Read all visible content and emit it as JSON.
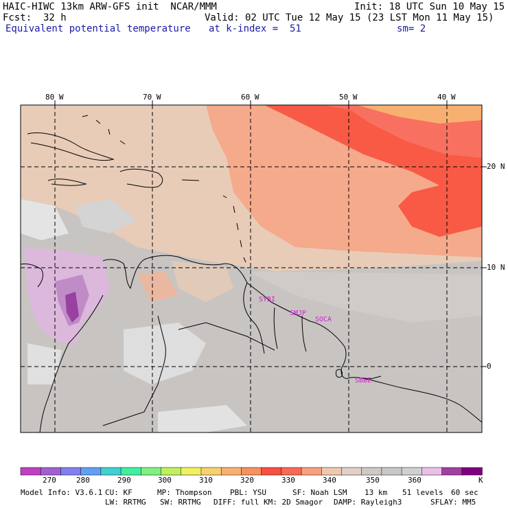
{
  "header": {
    "model": "HAIC-HIWC 13km ARW-GFS init  NCAR/MMM",
    "init": "Init: 18 UTC Sun 10 May 15",
    "fcst": "Fcst:  32 h",
    "valid": "Valid: 02 UTC Tue 12 May 15 (23 LST Mon 11 May 15)",
    "field": "Equivalent potential temperature",
    "level": "at k-index =  51",
    "smooth": "sm= 2"
  },
  "map": {
    "lon_labels": [
      "80 W",
      "70 W",
      "60 W",
      "50 W",
      "40 W"
    ],
    "lat_labels": [
      "20 N",
      "10 N",
      "0"
    ],
    "stations": [
      "SYBI",
      "SMJP",
      "SOCA",
      "SBBE"
    ]
  },
  "colorbar": {
    "colors": [
      "#c040c0",
      "#a060d0",
      "#8080f0",
      "#60a0f0",
      "#40d0d0",
      "#40f0a0",
      "#80f080",
      "#c0f060",
      "#f0f060",
      "#f8d070",
      "#f8b070",
      "#f89060",
      "#f85040",
      "#f86a55",
      "#f8a080",
      "#f0c8b0",
      "#e0d0c8",
      "#d0c8c4",
      "#c8c8c8",
      "#d0d0d0",
      "#e8c0e8",
      "#a040a0",
      "#800080"
    ],
    "ticks": [
      "270",
      "280",
      "290",
      "300",
      "310",
      "320",
      "330",
      "340",
      "350",
      "360"
    ],
    "unit": "K"
  },
  "footer": {
    "line1": [
      "Model Info: V3.6.1",
      "CU: KF",
      "MP: Thompson",
      "PBL: YSU",
      "SF: Noah LSM",
      "13 km",
      "51 levels",
      "60 sec"
    ],
    "line2": [
      "LW: RRTMG",
      "SW: RRTMG",
      "DIFF: full",
      "KM: 2D Smagor",
      "DAMP: Rayleigh3",
      "SFLAY: MM5"
    ]
  }
}
